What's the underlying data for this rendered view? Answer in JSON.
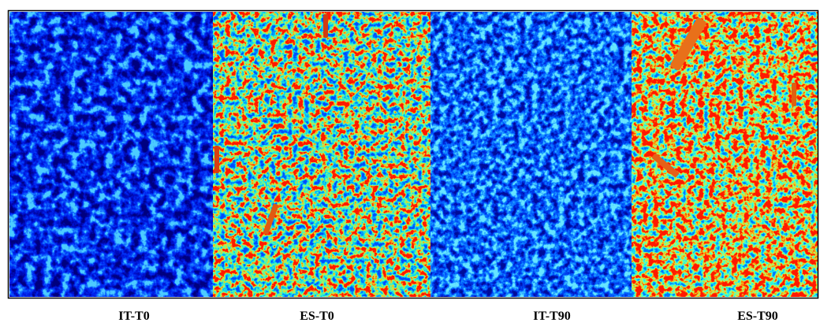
{
  "panels": [
    {
      "label": "IT-T0"
    },
    {
      "label": "ES-T0"
    },
    {
      "label": "IT-T90"
    },
    {
      "label": "ES-T90"
    }
  ]
}
